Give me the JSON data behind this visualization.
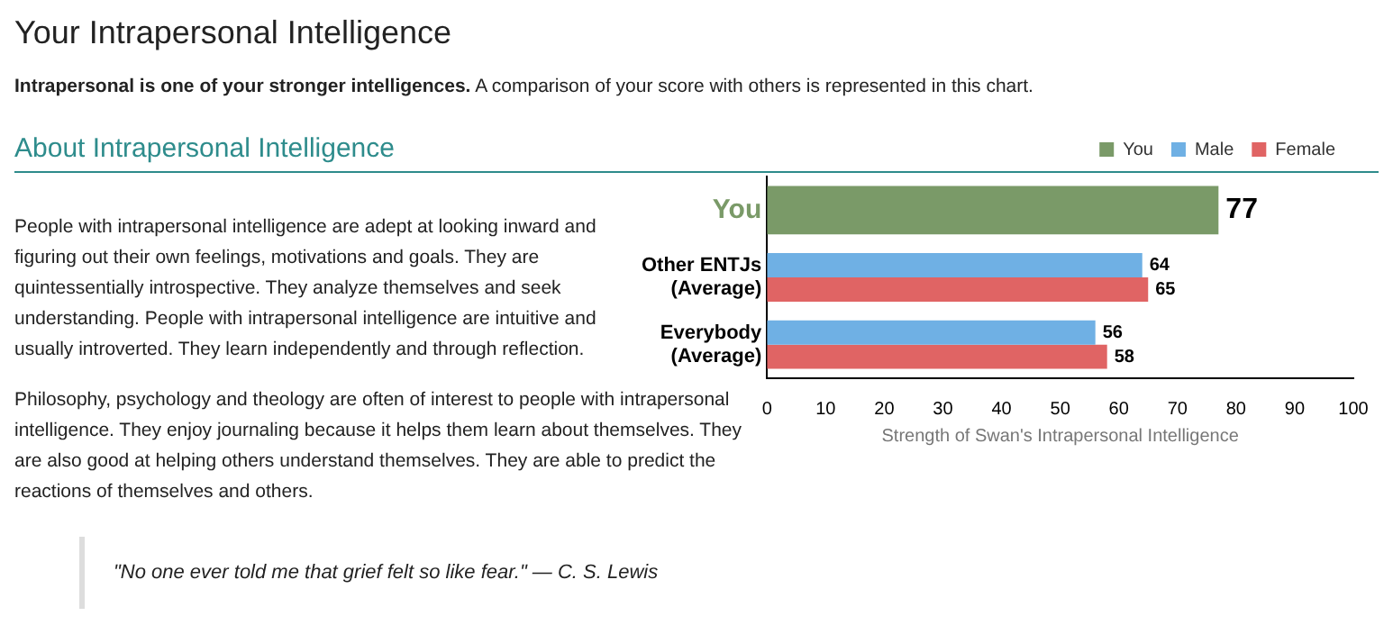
{
  "chart_data": {
    "type": "bar",
    "orientation": "horizontal",
    "title": "Your Intrapersonal Intelligence",
    "subtitle": "Intrapersonal is one of your stronger intelligences. A comparison of your score with others is represented in this chart.",
    "annotations": [
      "About Intrapersonal Intelligence",
      "People with intrapersonal intelligence are adept at looking inward and figuring out their own feelings, motivations and goals. They are quintessentially introspective. They analyze themselves and seek understanding. People with intrapersonal intelligence are intuitive and usually introverted. They learn independently and through reflection.",
      "Philosophy, psychology and theology are often of interest to people with intrapersonal intelligence. They enjoy journaling because it helps them learn about themselves. They are also good at helping others understand themselves. They are able to predict the reactions of themselves and others.",
      "\"No one ever told me that grief felt so like fear.\" — C. S. Lewis"
    ],
    "xlabel": "Strength of Swan's Intrapersonal Intelligence",
    "categories": [
      "You",
      "Other ENTJs\n(Average)",
      "Everybody\n(Average)"
    ],
    "series": [
      {
        "name": "You",
        "color": "#7a9a68",
        "values": [
          77,
          null,
          null
        ]
      },
      {
        "name": "Male",
        "color": "#6fb0e4",
        "values": [
          null,
          64,
          56
        ]
      },
      {
        "name": "Female",
        "color": "#e06464",
        "values": [
          null,
          65,
          58
        ]
      }
    ],
    "xlim": [
      0,
      100
    ],
    "xticks": [
      0,
      10,
      20,
      30,
      40,
      50,
      60,
      70,
      80,
      90,
      100
    ],
    "grid": false,
    "legend": "top",
    "data_labels": true
  }
}
